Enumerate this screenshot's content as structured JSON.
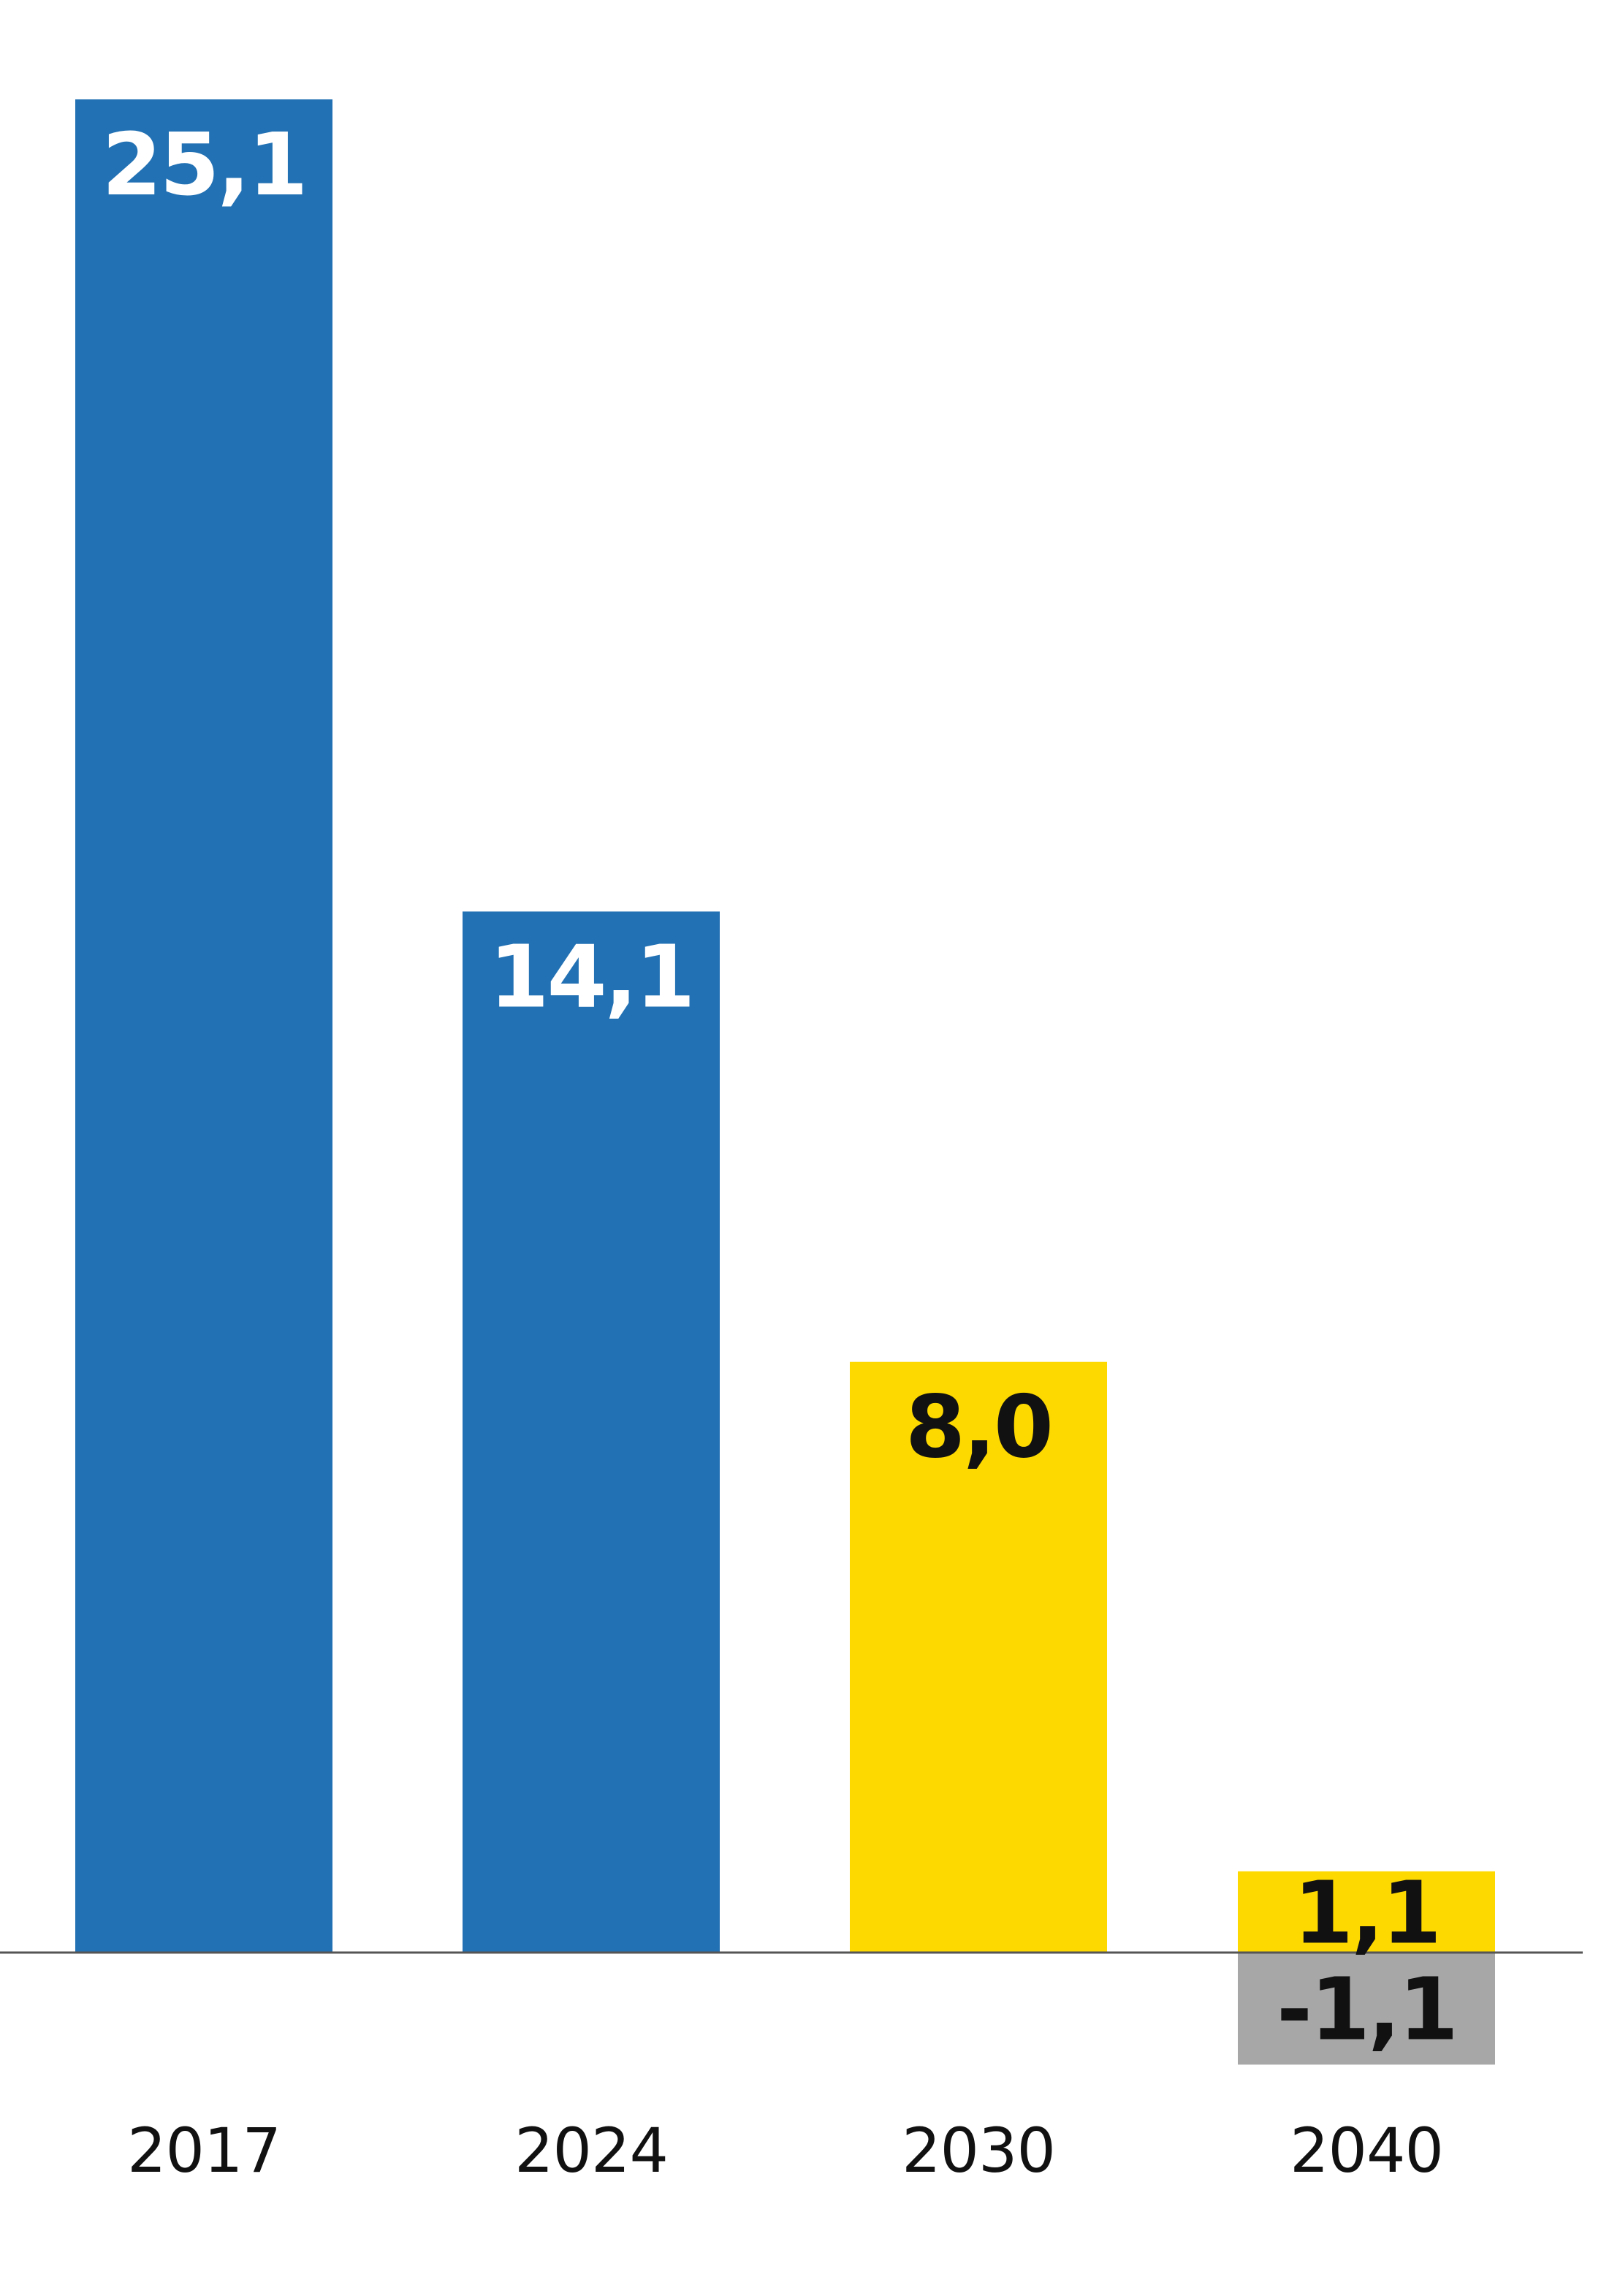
{
  "chart_data": {
    "type": "bar",
    "categories": [
      "2017",
      "2024",
      "2030",
      "2040"
    ],
    "values": [
      25.1,
      14.1,
      8.0,
      1.1
    ],
    "negative_values": [
      null,
      null,
      null,
      -1.1
    ],
    "value_labels": [
      "25,1",
      "14,1",
      "8,0",
      "1,1"
    ],
    "negative_labels": [
      "",
      "",
      "",
      "-1,1"
    ],
    "title": "",
    "xlabel": "",
    "ylabel": "",
    "ylim": [
      -1.6,
      26.5
    ],
    "grid": false,
    "legend": "none",
    "colors": {
      "historical": "#2271B4",
      "target": "#FDD900",
      "negative": "#A7A7A7",
      "axis": "#555555",
      "label_on_dark": "#FFFFFF",
      "label_on_light": "#111111"
    },
    "bar_colors": [
      "historical",
      "historical",
      "target",
      "target"
    ]
  }
}
